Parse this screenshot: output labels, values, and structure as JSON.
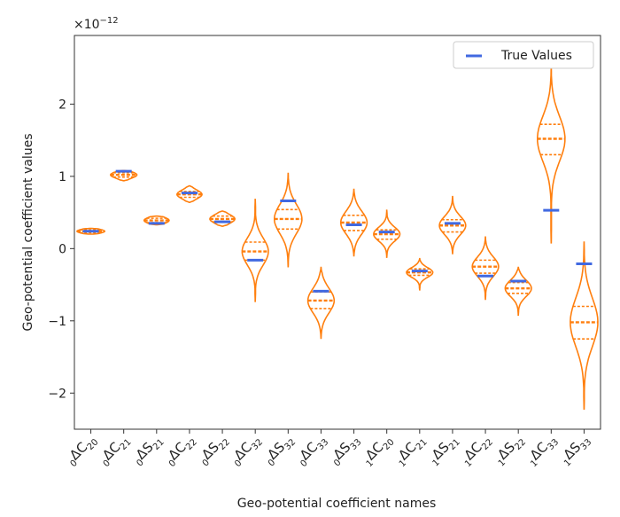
{
  "chart_data": {
    "type": "violin",
    "xlabel": "Geo-potential coefficient names",
    "ylabel": "Geo-potential coefficient values",
    "y_multiplier": "×10",
    "y_multiplier_exp": "−12",
    "ylim": [
      -2.5,
      2.95
    ],
    "yticks": [
      -2,
      -1,
      0,
      1,
      2
    ],
    "ytick_labels": [
      "−2",
      "−1",
      "0",
      "1",
      "2"
    ],
    "legend": {
      "label": "True Values",
      "placement": "top-right"
    },
    "colors": {
      "violin": "#ff7f0e",
      "true_value": "#4169e1",
      "axis": "#333333"
    },
    "categories": [
      {
        "pre": "0",
        "sym": "C",
        "sub": "20"
      },
      {
        "pre": "0",
        "sym": "C",
        "sub": "21"
      },
      {
        "pre": "0",
        "sym": "S",
        "sub": "21"
      },
      {
        "pre": "0",
        "sym": "C",
        "sub": "22"
      },
      {
        "pre": "0",
        "sym": "S",
        "sub": "22"
      },
      {
        "pre": "0",
        "sym": "C",
        "sub": "32"
      },
      {
        "pre": "0",
        "sym": "S",
        "sub": "32"
      },
      {
        "pre": "0",
        "sym": "C",
        "sub": "33"
      },
      {
        "pre": "0",
        "sym": "S",
        "sub": "33"
      },
      {
        "pre": "1",
        "sym": "C",
        "sub": "20"
      },
      {
        "pre": "1",
        "sym": "C",
        "sub": "21"
      },
      {
        "pre": "1",
        "sym": "S",
        "sub": "21"
      },
      {
        "pre": "1",
        "sym": "C",
        "sub": "22"
      },
      {
        "pre": "1",
        "sym": "S",
        "sub": "22"
      },
      {
        "pre": "1",
        "sym": "C",
        "sub": "33"
      },
      {
        "pre": "1",
        "sym": "S",
        "sub": "33"
      }
    ],
    "violins": [
      {
        "min": 0.2,
        "max": 0.28,
        "q1": 0.22,
        "median": 0.24,
        "q3": 0.26,
        "true": 0.24,
        "halfwidth": 0.42
      },
      {
        "min": 0.94,
        "max": 1.08,
        "q1": 0.99,
        "median": 1.02,
        "q3": 1.05,
        "true": 1.07,
        "halfwidth": 0.4
      },
      {
        "min": 0.33,
        "max": 0.45,
        "q1": 0.36,
        "median": 0.39,
        "q3": 0.42,
        "true": 0.35,
        "halfwidth": 0.38
      },
      {
        "min": 0.64,
        "max": 0.87,
        "q1": 0.71,
        "median": 0.75,
        "q3": 0.79,
        "true": 0.77,
        "halfwidth": 0.38
      },
      {
        "min": 0.31,
        "max": 0.52,
        "q1": 0.37,
        "median": 0.41,
        "q3": 0.45,
        "true": 0.37,
        "halfwidth": 0.38
      },
      {
        "min": -0.73,
        "max": 0.68,
        "q1": -0.16,
        "median": -0.04,
        "q3": 0.09,
        "true": -0.16,
        "halfwidth": 0.4
      },
      {
        "min": -0.25,
        "max": 1.04,
        "q1": 0.27,
        "median": 0.41,
        "q3": 0.54,
        "true": 0.66,
        "halfwidth": 0.42
      },
      {
        "min": -1.24,
        "max": -0.26,
        "q1": -0.83,
        "median": -0.72,
        "q3": -0.6,
        "true": -0.59,
        "halfwidth": 0.4
      },
      {
        "min": -0.1,
        "max": 0.82,
        "q1": 0.25,
        "median": 0.36,
        "q3": 0.46,
        "true": 0.33,
        "halfwidth": 0.4
      },
      {
        "min": -0.12,
        "max": 0.53,
        "q1": 0.13,
        "median": 0.2,
        "q3": 0.26,
        "true": 0.23,
        "halfwidth": 0.4
      },
      {
        "min": -0.57,
        "max": -0.14,
        "q1": -0.37,
        "median": -0.33,
        "q3": -0.28,
        "true": -0.31,
        "halfwidth": 0.4
      },
      {
        "min": -0.07,
        "max": 0.72,
        "q1": 0.23,
        "median": 0.32,
        "q3": 0.4,
        "true": 0.35,
        "halfwidth": 0.4
      },
      {
        "min": -0.7,
        "max": 0.16,
        "q1": -0.34,
        "median": -0.25,
        "q3": -0.16,
        "true": -0.38,
        "halfwidth": 0.4
      },
      {
        "min": -0.92,
        "max": -0.26,
        "q1": -0.62,
        "median": -0.55,
        "q3": -0.47,
        "true": -0.45,
        "halfwidth": 0.4
      },
      {
        "min": 0.08,
        "max": 2.52,
        "q1": 1.3,
        "median": 1.52,
        "q3": 1.72,
        "true": 0.53,
        "halfwidth": 0.42
      },
      {
        "min": -2.22,
        "max": 0.09,
        "q1": -1.25,
        "median": -1.02,
        "q3": -0.8,
        "true": -0.21,
        "halfwidth": 0.42
      }
    ]
  }
}
